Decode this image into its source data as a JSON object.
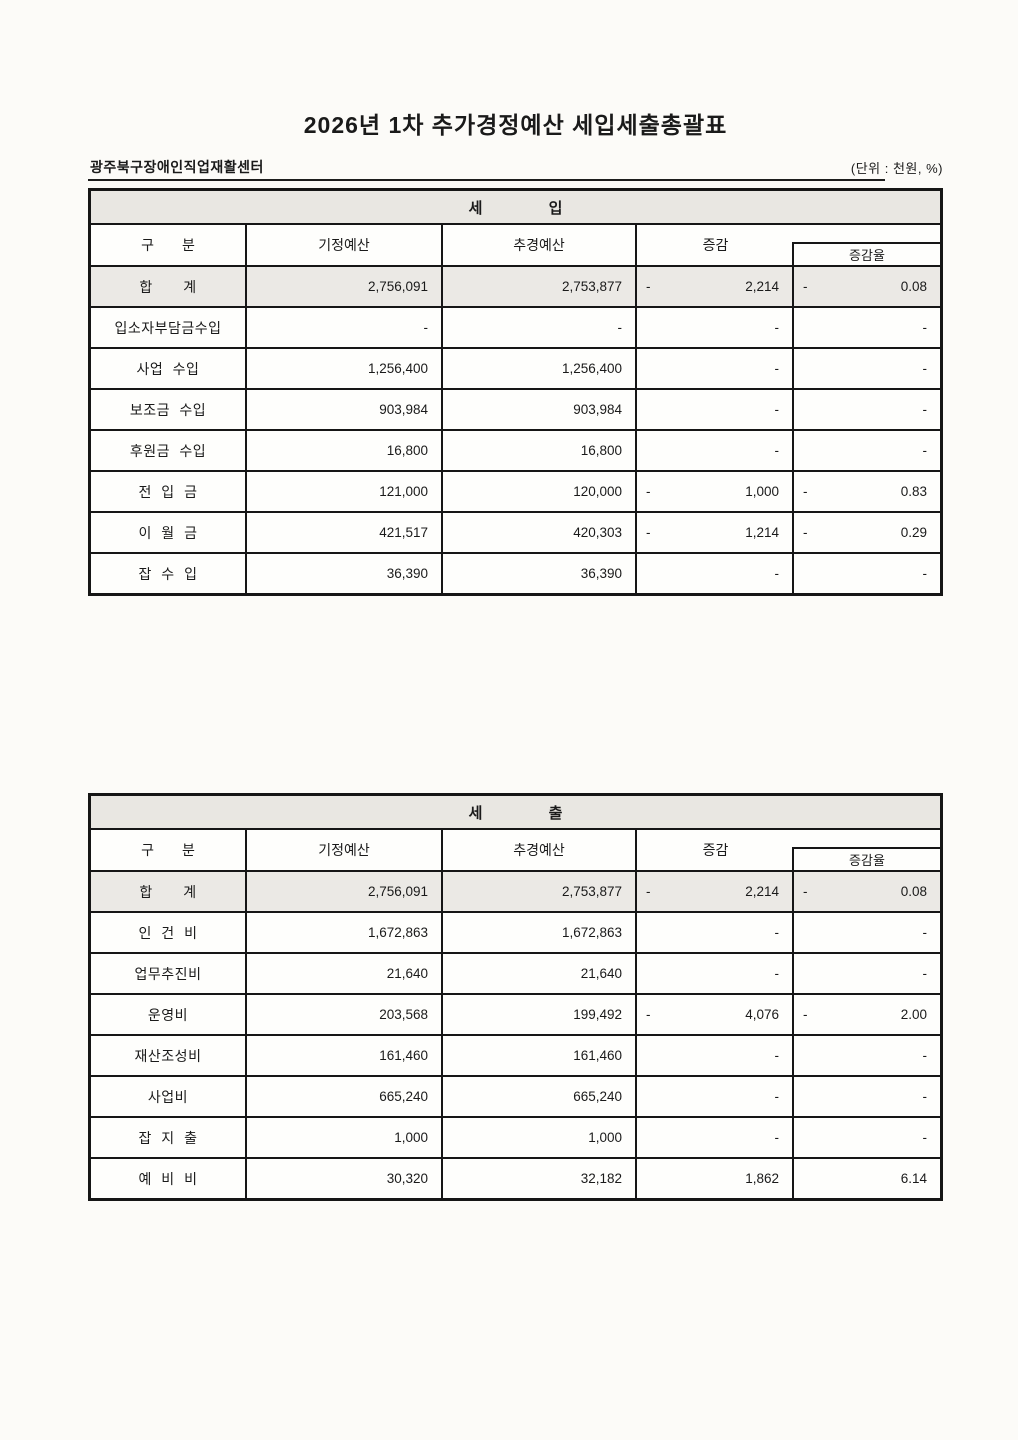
{
  "page": {
    "title": "2026년 1차 추가경정예산 세입세출총괄표",
    "org_name": "광주북구장애인직업재활센터",
    "unit_note": "(단위 : 천원, %)"
  },
  "columns": {
    "category": "구 분",
    "base_budget": "기정예산",
    "supplementary_budget": "추경예산",
    "change": "증감",
    "change_rate": "증감율"
  },
  "colors": {
    "paper": "#fcfbf8",
    "band_bg": "#e9e7e2",
    "total_row_bg": "#ebe9e5",
    "border": "#161616"
  },
  "revenue_table": {
    "section_title": "세 입",
    "rows": [
      {
        "label": "합 계",
        "cells": [
          {
            "neg": "",
            "val": "2,756,091"
          },
          {
            "neg": "",
            "val": "2,753,877"
          },
          {
            "neg": "-",
            "val": "2,214"
          },
          {
            "neg": "-",
            "val": "0.08"
          }
        ]
      },
      {
        "label": "입소자부담금수입",
        "cells": [
          {
            "neg": "",
            "val": "-"
          },
          {
            "neg": "",
            "val": "-"
          },
          {
            "neg": "",
            "val": "-"
          },
          {
            "neg": "",
            "val": "-"
          }
        ]
      },
      {
        "label": "사업 수입",
        "cells": [
          {
            "neg": "",
            "val": "1,256,400"
          },
          {
            "neg": "",
            "val": "1,256,400"
          },
          {
            "neg": "",
            "val": "-"
          },
          {
            "neg": "",
            "val": "-"
          }
        ]
      },
      {
        "label": "보조금 수입",
        "cells": [
          {
            "neg": "",
            "val": "903,984"
          },
          {
            "neg": "",
            "val": "903,984"
          },
          {
            "neg": "",
            "val": "-"
          },
          {
            "neg": "",
            "val": "-"
          }
        ]
      },
      {
        "label": "후원금 수입",
        "cells": [
          {
            "neg": "",
            "val": "16,800"
          },
          {
            "neg": "",
            "val": "16,800"
          },
          {
            "neg": "",
            "val": "-"
          },
          {
            "neg": "",
            "val": "-"
          }
        ]
      },
      {
        "label": "전 입 금",
        "cells": [
          {
            "neg": "",
            "val": "121,000"
          },
          {
            "neg": "",
            "val": "120,000"
          },
          {
            "neg": "-",
            "val": "1,000"
          },
          {
            "neg": "-",
            "val": "0.83"
          }
        ]
      },
      {
        "label": "이 월 금",
        "cells": [
          {
            "neg": "",
            "val": "421,517"
          },
          {
            "neg": "",
            "val": "420,303"
          },
          {
            "neg": "-",
            "val": "1,214"
          },
          {
            "neg": "-",
            "val": "0.29"
          }
        ]
      },
      {
        "label": "잡 수 입",
        "cells": [
          {
            "neg": "",
            "val": "36,390"
          },
          {
            "neg": "",
            "val": "36,390"
          },
          {
            "neg": "",
            "val": "-"
          },
          {
            "neg": "",
            "val": "-"
          }
        ]
      }
    ]
  },
  "expenditure_table": {
    "section_title": "세 출",
    "rows": [
      {
        "label": "합 계",
        "cells": [
          {
            "neg": "",
            "val": "2,756,091"
          },
          {
            "neg": "",
            "val": "2,753,877"
          },
          {
            "neg": "-",
            "val": "2,214"
          },
          {
            "neg": "-",
            "val": "0.08"
          }
        ]
      },
      {
        "label": "인 건 비",
        "cells": [
          {
            "neg": "",
            "val": "1,672,863"
          },
          {
            "neg": "",
            "val": "1,672,863"
          },
          {
            "neg": "",
            "val": "-"
          },
          {
            "neg": "",
            "val": "-"
          }
        ]
      },
      {
        "label": "업무추진비",
        "cells": [
          {
            "neg": "",
            "val": "21,640"
          },
          {
            "neg": "",
            "val": "21,640"
          },
          {
            "neg": "",
            "val": "-"
          },
          {
            "neg": "",
            "val": "-"
          }
        ]
      },
      {
        "label": "운영비",
        "cells": [
          {
            "neg": "",
            "val": "203,568"
          },
          {
            "neg": "",
            "val": "199,492"
          },
          {
            "neg": "-",
            "val": "4,076"
          },
          {
            "neg": "-",
            "val": "2.00"
          }
        ]
      },
      {
        "label": "재산조성비",
        "cells": [
          {
            "neg": "",
            "val": "161,460"
          },
          {
            "neg": "",
            "val": "161,460"
          },
          {
            "neg": "",
            "val": "-"
          },
          {
            "neg": "",
            "val": "-"
          }
        ]
      },
      {
        "label": "사업비",
        "cells": [
          {
            "neg": "",
            "val": "665,240"
          },
          {
            "neg": "",
            "val": "665,240"
          },
          {
            "neg": "",
            "val": "-"
          },
          {
            "neg": "",
            "val": "-"
          }
        ]
      },
      {
        "label": "잡 지 출",
        "cells": [
          {
            "neg": "",
            "val": "1,000"
          },
          {
            "neg": "",
            "val": "1,000"
          },
          {
            "neg": "",
            "val": "-"
          },
          {
            "neg": "",
            "val": "-"
          }
        ]
      },
      {
        "label": "예 비 비",
        "cells": [
          {
            "neg": "",
            "val": "30,320"
          },
          {
            "neg": "",
            "val": "32,182"
          },
          {
            "neg": "",
            "val": "1,862"
          },
          {
            "neg": "",
            "val": "6.14"
          }
        ]
      }
    ]
  }
}
